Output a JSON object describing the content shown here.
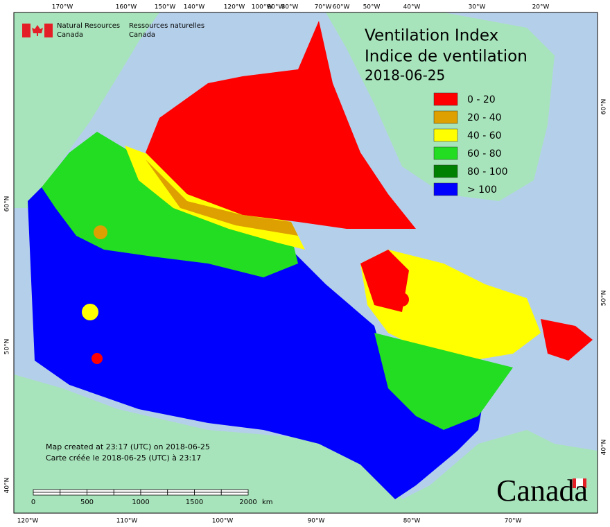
{
  "header": {
    "org_en": "Natural Resources",
    "country_en": "Canada",
    "org_fr": "Ressources naturelles",
    "country_fr": "Canada"
  },
  "title": {
    "line1": "Ventilation Index",
    "line2": "Indice de ventilation",
    "date": "2018-06-25"
  },
  "legend": [
    {
      "label": "0 - 20",
      "color": "#ff0000"
    },
    {
      "label": "20 - 40",
      "color": "#dda000"
    },
    {
      "label": "40 - 60",
      "color": "#ffff00"
    },
    {
      "label": "60 - 80",
      "color": "#22dd22"
    },
    {
      "label": "80 - 100",
      "color": "#008000"
    },
    {
      "label": "> 100",
      "color": "#0000ff"
    }
  ],
  "graticule": {
    "top": [
      "170°W",
      "160°W",
      "150°W",
      "140°W",
      "120°W",
      "100°W",
      "90°W",
      "80°W",
      "70°W",
      "60°W",
      "50°W",
      "40°W",
      "30°W",
      "20°W"
    ],
    "bottom": [
      "120°W",
      "110°W",
      "100°W",
      "90°W",
      "80°W",
      "70°W"
    ],
    "left": [
      "60°N",
      "50°N",
      "40°N"
    ],
    "right": [
      "60°N",
      "50°N",
      "40°N"
    ]
  },
  "notes": {
    "line1": "Map created at 23:17 (UTC) on 2018-06-25",
    "line2": "Carte créée le 2018-06-25 (UTC) à 23:17"
  },
  "scale_bar": {
    "ticks": [
      "0",
      "500",
      "1000",
      "1500",
      "2000"
    ],
    "unit": "km"
  },
  "wordmark": "Canada"
}
